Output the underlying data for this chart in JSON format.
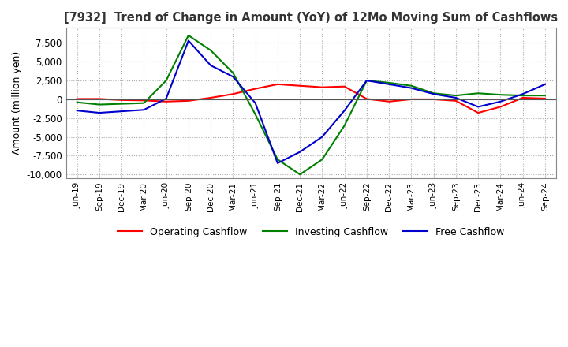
{
  "title": "[7932]  Trend of Change in Amount (YoY) of 12Mo Moving Sum of Cashflows",
  "ylabel": "Amount (million yen)",
  "ylim": [
    -10500,
    9500
  ],
  "yticks": [
    -10000,
    -7500,
    -5000,
    -2500,
    0,
    2500,
    5000,
    7500
  ],
  "x_labels": [
    "Jun-19",
    "Sep-19",
    "Dec-19",
    "Mar-20",
    "Jun-20",
    "Sep-20",
    "Dec-20",
    "Mar-21",
    "Jun-21",
    "Sep-21",
    "Dec-21",
    "Mar-22",
    "Jun-22",
    "Sep-22",
    "Dec-22",
    "Mar-23",
    "Jun-23",
    "Sep-23",
    "Dec-23",
    "Mar-24",
    "Jun-24",
    "Sep-24"
  ],
  "operating_cashflow": [
    50,
    50,
    -100,
    -150,
    -300,
    -200,
    200,
    700,
    1400,
    2000,
    1800,
    1600,
    1700,
    50,
    -300,
    0,
    0,
    -200,
    -1800,
    -1000,
    200,
    100
  ],
  "investing_cashflow": [
    -400,
    -700,
    -600,
    -500,
    2500,
    8500,
    6500,
    3500,
    -2000,
    -8000,
    -10000,
    -8000,
    -3500,
    2500,
    2200,
    1800,
    800,
    500,
    800,
    600,
    500,
    500
  ],
  "free_cashflow": [
    -1500,
    -1800,
    -1600,
    -1400,
    100,
    7800,
    4500,
    3000,
    -500,
    -8500,
    -7000,
    -5000,
    -1500,
    2500,
    2000,
    1500,
    700,
    200,
    -1000,
    -300,
    700,
    2000
  ],
  "operating_color": "#ff0000",
  "investing_color": "#008000",
  "free_color": "#0000cd",
  "bg_color": "#ffffff",
  "grid_color": "#aaaaaa",
  "legend_labels": [
    "Operating Cashflow",
    "Investing Cashflow",
    "Free Cashflow"
  ]
}
